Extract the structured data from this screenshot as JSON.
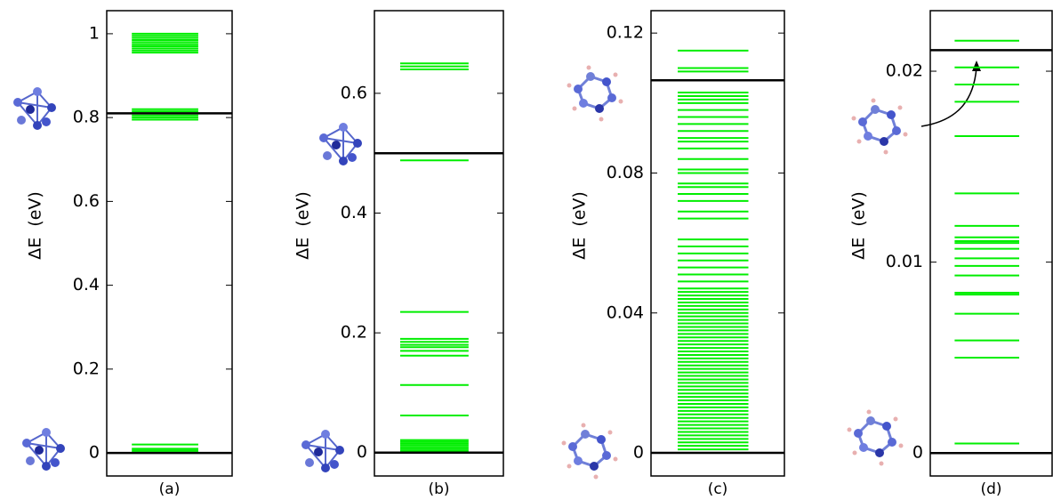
{
  "chart_data": [
    {
      "type": "levels",
      "ylabel": "ΔE  (eV)",
      "xlabel": "(a)",
      "ylim": [
        -0.055,
        1.055
      ],
      "yticks": [
        0,
        0.2,
        0.4,
        0.6,
        0.8,
        1
      ],
      "color": "#00ee00",
      "reference_color": "#000000",
      "levels": [
        0.002,
        0.006,
        0.01,
        0.02,
        0.795,
        0.8,
        0.805,
        0.81,
        0.815,
        0.82,
        0.955,
        0.96,
        0.965,
        0.97,
        0.975,
        0.98,
        0.985,
        0.99,
        0.995,
        1.0
      ],
      "reference_lines": [
        0,
        0.81
      ]
    },
    {
      "type": "levels",
      "ylabel": "ΔE  (eV)",
      "xlabel": "(b)",
      "ylim": [
        -0.039,
        0.738
      ],
      "yticks": [
        0,
        0.2,
        0.4,
        0.6
      ],
      "color": "#00ee00",
      "reference_color": "#000000",
      "levels": [
        0.003,
        0.006,
        0.009,
        0.012,
        0.015,
        0.018,
        0.021,
        0.062,
        0.113,
        0.162,
        0.17,
        0.176,
        0.18,
        0.185,
        0.19,
        0.235,
        0.488,
        0.64,
        0.645,
        0.65
      ],
      "reference_lines": [
        0,
        0.5
      ]
    },
    {
      "type": "levels",
      "ylabel": "ΔE  (eV)",
      "xlabel": "(c)",
      "ylim": [
        -0.0066,
        0.1264
      ],
      "yticks": [
        0,
        0.04,
        0.08,
        0.12
      ],
      "color": "#00ee00",
      "reference_color": "#000000",
      "levels": [
        0.001,
        0.002,
        0.003,
        0.004,
        0.005,
        0.006,
        0.007,
        0.008,
        0.009,
        0.01,
        0.011,
        0.012,
        0.013,
        0.014,
        0.015,
        0.016,
        0.017,
        0.018,
        0.019,
        0.02,
        0.021,
        0.022,
        0.023,
        0.024,
        0.025,
        0.026,
        0.027,
        0.028,
        0.029,
        0.03,
        0.031,
        0.032,
        0.033,
        0.034,
        0.035,
        0.036,
        0.037,
        0.038,
        0.039,
        0.04,
        0.041,
        0.042,
        0.043,
        0.044,
        0.045,
        0.046,
        0.047,
        0.049,
        0.051,
        0.053,
        0.055,
        0.057,
        0.059,
        0.061,
        0.067,
        0.069,
        0.072,
        0.074,
        0.076,
        0.077,
        0.08,
        0.081,
        0.084,
        0.087,
        0.089,
        0.09,
        0.092,
        0.094,
        0.096,
        0.098,
        0.1,
        0.101,
        0.102,
        0.103,
        0.109,
        0.11,
        0.115
      ],
      "reference_lines": [
        0,
        0.1065
      ]
    },
    {
      "type": "levels",
      "ylabel": "ΔE  (eV)",
      "xlabel": "(d)",
      "ylim": [
        -0.0012,
        0.02317
      ],
      "yticks": [
        0,
        0.01,
        0.02
      ],
      "color": "#00ee00",
      "reference_color": "#000000",
      "levels": [
        0.0005,
        0.005,
        0.0059,
        0.0073,
        0.0083,
        0.0084,
        0.0093,
        0.0098,
        0.0102,
        0.0107,
        0.011,
        0.0111,
        0.0113,
        0.0119,
        0.0136,
        0.0166,
        0.0184,
        0.0193,
        0.0202,
        0.0216
      ],
      "reference_lines": [
        0,
        0.0211
      ]
    }
  ]
}
